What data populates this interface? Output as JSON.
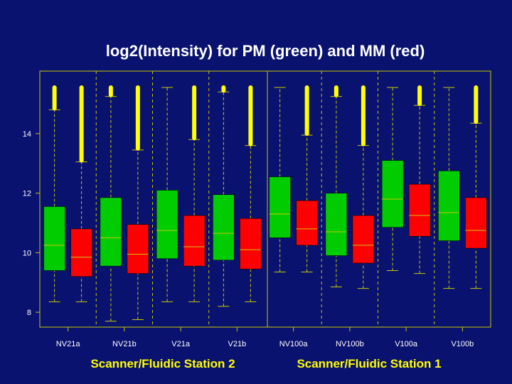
{
  "chart_data": {
    "type": "boxplot",
    "title": "log2(Intensity) for PM (green) and MM (red)",
    "xlabel": "",
    "ylabel": "",
    "ylim": [
      7.5,
      16.1
    ],
    "yticks": [
      8,
      10,
      12,
      14
    ],
    "ytick_labels": [
      "8",
      "10",
      "12",
      "14"
    ],
    "categories": [
      "NV21a",
      "NV21b",
      "V21a",
      "V21b",
      "NV100a",
      "NV100b",
      "V100a",
      "V100b"
    ],
    "group_labels": [
      "Scanner/Fluidic Station 2",
      "Scanner/Fluidic Station 1"
    ],
    "colors": {
      "background": "#0a1270",
      "pm": "#00cc00",
      "mm": "#ff0000",
      "axis": "#c8c800",
      "outlier": "#ffff00",
      "median": "#c8c800",
      "title": "#ffffff",
      "group_label": "#ffff00"
    },
    "series": [
      {
        "name": "PM",
        "color": "green",
        "boxes": [
          {
            "whisker_low": 8.35,
            "q1": 9.4,
            "median": 10.25,
            "q3": 11.55,
            "whisker_high": 14.8,
            "outlier_max": 15.55
          },
          {
            "whisker_low": 7.7,
            "q1": 9.55,
            "median": 10.5,
            "q3": 11.85,
            "whisker_high": 15.25,
            "outlier_max": 15.55
          },
          {
            "whisker_low": 8.35,
            "q1": 9.8,
            "median": 10.75,
            "q3": 12.1,
            "whisker_high": 15.55,
            "outlier_max": 15.55
          },
          {
            "whisker_low": 8.2,
            "q1": 9.75,
            "median": 10.65,
            "q3": 11.95,
            "whisker_high": 15.4,
            "outlier_max": 15.55
          },
          {
            "whisker_low": 9.35,
            "q1": 10.5,
            "median": 11.3,
            "q3": 12.55,
            "whisker_high": 15.55,
            "outlier_max": 15.55
          },
          {
            "whisker_low": 8.85,
            "q1": 9.9,
            "median": 10.7,
            "q3": 12.0,
            "whisker_high": 15.25,
            "outlier_max": 15.55
          },
          {
            "whisker_low": 9.4,
            "q1": 10.85,
            "median": 11.8,
            "q3": 13.1,
            "whisker_high": 15.55,
            "outlier_max": 15.55
          },
          {
            "whisker_low": 8.8,
            "q1": 10.4,
            "median": 11.35,
            "q3": 12.75,
            "whisker_high": 15.55,
            "outlier_max": 15.55
          }
        ]
      },
      {
        "name": "MM",
        "color": "red",
        "boxes": [
          {
            "whisker_low": 8.35,
            "q1": 9.2,
            "median": 9.85,
            "q3": 10.8,
            "whisker_high": 13.05,
            "outlier_max": 15.55
          },
          {
            "whisker_low": 7.75,
            "q1": 9.3,
            "median": 9.95,
            "q3": 10.95,
            "whisker_high": 13.45,
            "outlier_max": 15.55
          },
          {
            "whisker_low": 8.35,
            "q1": 9.55,
            "median": 10.2,
            "q3": 11.25,
            "whisker_high": 13.8,
            "outlier_max": 15.55
          },
          {
            "whisker_low": 8.35,
            "q1": 9.45,
            "median": 10.1,
            "q3": 11.15,
            "whisker_high": 13.6,
            "outlier_max": 15.55
          },
          {
            "whisker_low": 9.35,
            "q1": 10.25,
            "median": 10.8,
            "q3": 11.75,
            "whisker_high": 13.95,
            "outlier_max": 15.55
          },
          {
            "whisker_low": 8.8,
            "q1": 9.65,
            "median": 10.25,
            "q3": 11.25,
            "whisker_high": 13.6,
            "outlier_max": 15.55
          },
          {
            "whisker_low": 9.3,
            "q1": 10.55,
            "median": 11.25,
            "q3": 12.3,
            "whisker_high": 14.95,
            "outlier_max": 15.55
          },
          {
            "whisker_low": 8.8,
            "q1": 10.15,
            "median": 10.75,
            "q3": 11.85,
            "whisker_high": 14.35,
            "outlier_max": 15.55
          }
        ]
      }
    ]
  }
}
